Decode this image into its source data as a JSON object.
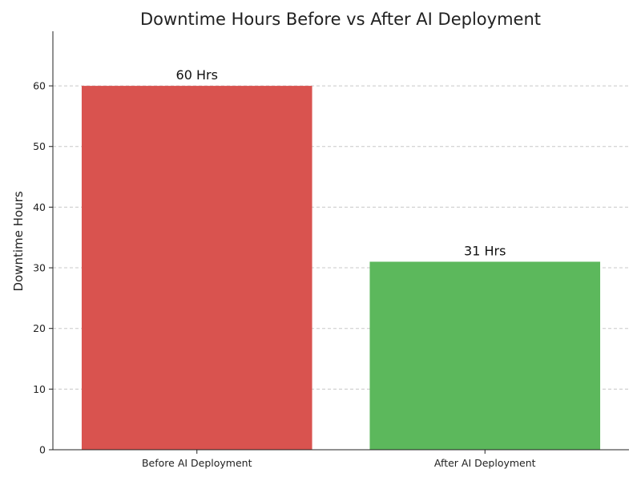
{
  "chart_data": {
    "type": "bar",
    "title": "Downtime Hours Before vs After AI Deployment",
    "xlabel": "",
    "ylabel": "Downtime Hours",
    "categories": [
      "Before AI Deployment",
      "After AI Deployment"
    ],
    "values": [
      60,
      31
    ],
    "data_labels": [
      "60 Hrs",
      "31 Hrs"
    ],
    "colors": [
      "#d9534f",
      "#5cb85c"
    ],
    "ylim": [
      0,
      69
    ],
    "yticks": [
      0,
      10,
      20,
      30,
      40,
      50,
      60
    ],
    "grid": true,
    "grid_axis": "y",
    "legend": "none"
  }
}
